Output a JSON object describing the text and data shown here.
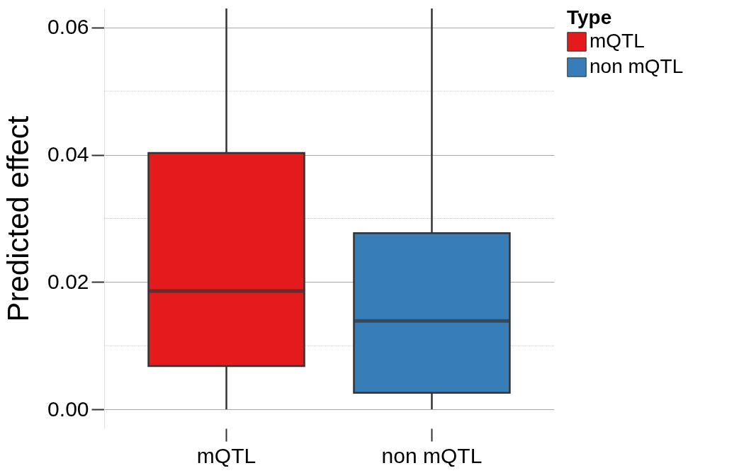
{
  "chart_data": {
    "type": "box",
    "ylabel": "Predicted effect",
    "legend_title": "Type",
    "categories": [
      "mQTL",
      "non mQTL"
    ],
    "series": [
      {
        "name": "mQTL",
        "color": "#e41a1c",
        "boxes": [
          {
            "low": 0.0,
            "q1": 0.0068,
            "median": 0.0186,
            "q3": 0.0403,
            "high": 0.063
          },
          null
        ]
      },
      {
        "name": "non mQTL",
        "color": "#377eb8",
        "boxes": [
          null,
          {
            "low": 0.0,
            "q1": 0.0026,
            "median": 0.0139,
            "q3": 0.0277,
            "high": 0.063
          }
        ]
      }
    ],
    "ylim": [
      -0.003,
      0.063
    ],
    "yticks": [
      {
        "value": 0.0,
        "label": "0.00"
      },
      {
        "value": 0.02,
        "label": "0.02"
      },
      {
        "value": 0.04,
        "label": "0.04"
      },
      {
        "value": 0.06,
        "label": "0.06"
      }
    ],
    "grid": true,
    "legend": "right"
  }
}
